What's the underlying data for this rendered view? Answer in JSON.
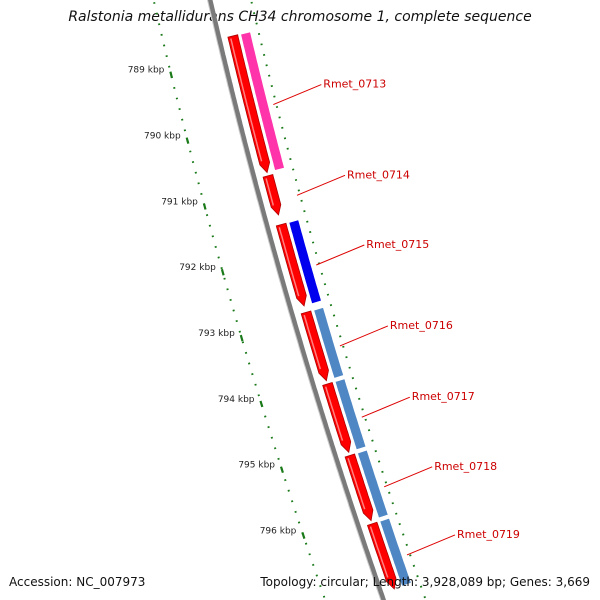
{
  "title": "Ralstonia metallidurans CH34 chromosome 1, complete sequence",
  "accession_label": "Accession: NC_007973",
  "topology_label": "Topology: circular; Length: 3,928,089 bp; Genes: 3,669",
  "ticks": [
    {
      "label": "789 kbp",
      "value": 789
    },
    {
      "label": "790 kbp",
      "value": 790
    },
    {
      "label": "791 kbp",
      "value": 791
    },
    {
      "label": "792 kbp",
      "value": 792
    },
    {
      "label": "793 kbp",
      "value": 793
    },
    {
      "label": "794 kbp",
      "value": 794
    },
    {
      "label": "795 kbp",
      "value": 795
    },
    {
      "label": "796 kbp",
      "value": 796
    }
  ],
  "genes": [
    {
      "label": "Rmet_0713",
      "start": 788.7,
      "end": 790.8,
      "cds_color": "#ff0000",
      "feature_color": "#ff33aa"
    },
    {
      "label": "Rmet_0714",
      "start": 790.85,
      "end": 791.45,
      "cds_color": "#ff0000",
      "feature_color": ""
    },
    {
      "label": "Rmet_0715",
      "start": 791.6,
      "end": 792.85,
      "cds_color": "#ff0000",
      "feature_color": "#0000ee"
    },
    {
      "label": "Rmet_0716",
      "start": 792.95,
      "end": 794.0,
      "cds_color": "#ff0000",
      "feature_color": "#4f87c5"
    },
    {
      "label": "Rmet_0717",
      "start": 794.05,
      "end": 795.1,
      "cds_color": "#ff0000",
      "feature_color": "#4f87c5"
    },
    {
      "label": "Rmet_0718",
      "start": 795.15,
      "end": 796.15,
      "cds_color": "#ff0000",
      "feature_color": "#4f87c5"
    },
    {
      "label": "Rmet_0719",
      "start": 796.2,
      "end": 797.2,
      "cds_color": "#ff0000",
      "feature_color": "#4f87c5"
    }
  ],
  "colors": {
    "backbone": "#7a7a7a",
    "tick": "#1a7a1a",
    "gene_label": "#cc0000",
    "leader_line": "#dd0000"
  }
}
